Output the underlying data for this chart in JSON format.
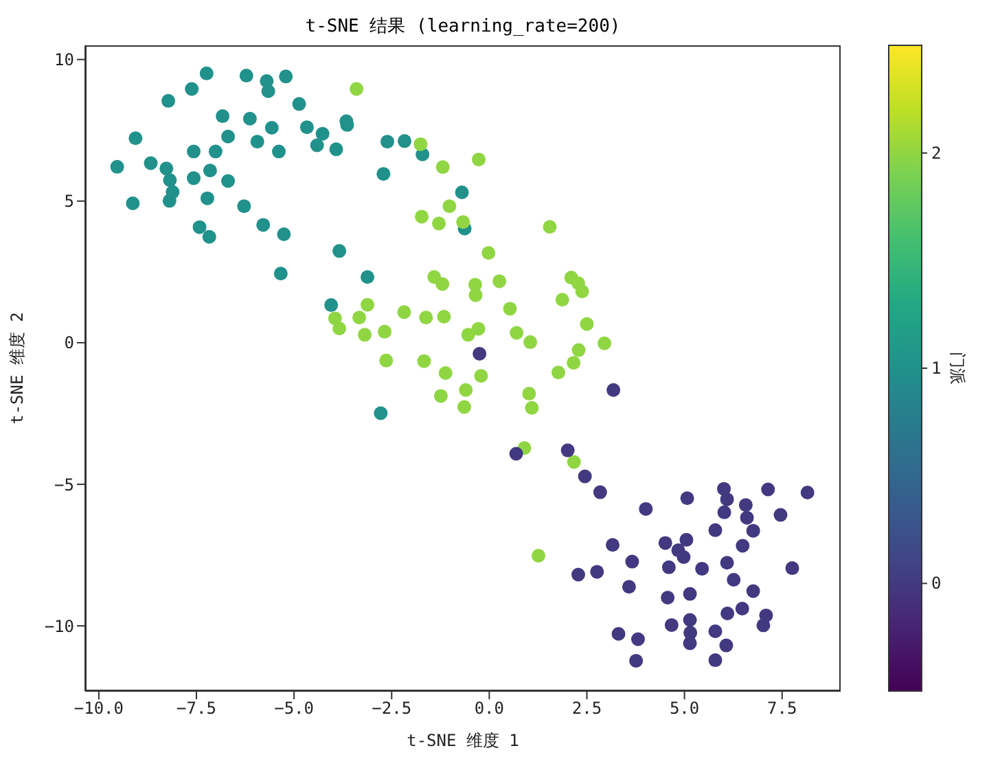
{
  "chart_data": {
    "type": "scatter",
    "title": "t-SNE 结果 (learning_rate=200)",
    "xlabel": "t-SNE 维度 1",
    "ylabel": "t-SNE 维度 2",
    "clabel": "门派",
    "marker": "circle",
    "xlim": [
      -10.35,
      9.0
    ],
    "ylim": [
      -12.3,
      10.5
    ],
    "xticks": [
      {
        "value": -10,
        "label": "−10.0"
      },
      {
        "value": -7.5,
        "label": "−7.5"
      },
      {
        "value": -5,
        "label": "−5.0"
      },
      {
        "value": -2.5,
        "label": "−2.5"
      },
      {
        "value": 0,
        "label": "0.0"
      },
      {
        "value": 2.5,
        "label": "2.5"
      },
      {
        "value": 5,
        "label": "5.0"
      },
      {
        "value": 7.5,
        "label": "7.5"
      }
    ],
    "yticks": [
      {
        "value": -10,
        "label": "−10"
      },
      {
        "value": -5,
        "label": "−5"
      },
      0,
      5,
      10
    ],
    "clim": [
      -0.5,
      2.5
    ],
    "cticks": [
      0,
      1,
      2
    ],
    "x": [
      -7.24,
      -6.22,
      -5.7,
      -5.66,
      -5.21,
      -7.62,
      -8.22,
      -4.87,
      -6.83,
      -6.13,
      -5.57,
      -4.67,
      -4.27,
      -3.66,
      -3.64,
      -9.06,
      -6.69,
      -5.94,
      -4.41,
      -3.92,
      -5.39,
      -7.57,
      -7.01,
      -2.61,
      -2.17,
      -1.71,
      -9.53,
      -8.67,
      -8.27,
      -8.18,
      -7.57,
      -7.15,
      -6.69,
      -8.11,
      -8.19,
      -9.13,
      -7.22,
      -6.28,
      -2.71,
      -0.7,
      -0.63,
      -7.42,
      -7.17,
      -5.79,
      -5.26,
      -3.84,
      -5.34,
      -3.12,
      -4.05,
      -2.78,
      -3.4,
      -1.76,
      -1.19,
      -1.02,
      -1.73,
      -1.29,
      -0.67,
      -1.41,
      -1.2,
      -3.12,
      -2.18,
      -3.95,
      -3.33,
      -1.62,
      -1.16,
      -0.27,
      1.55,
      -0.02,
      -0.36,
      -0.35,
      0.26,
      2.1,
      2.28,
      2.38,
      1.87,
      0.53,
      2.5,
      2.95,
      2.29,
      2.16,
      1.77,
      0.7,
      1.05,
      -0.28,
      -0.54,
      -3.84,
      -3.19,
      -2.68,
      -2.64,
      -1.67,
      -1.12,
      -0.21,
      -0.6,
      -1.24,
      -0.64,
      1.02,
      1.09,
      0.9,
      2.17,
      1.26,
      -0.25,
      3.18,
      0.69,
      2.01,
      2.45,
      2.84,
      4.01,
      5.07,
      6.01,
      6.09,
      6.02,
      6.57,
      6.6,
      7.14,
      8.15,
      7.46,
      5.79,
      6.76,
      6.49,
      3.16,
      4.51,
      5.05,
      4.84,
      4.98,
      3.66,
      4.6,
      5.45,
      6.09,
      7.76,
      2.28,
      2.76,
      3.58,
      6.26,
      6.76,
      4.57,
      5.14,
      6.48,
      6.1,
      7.09,
      7.02,
      4.67,
      5.14,
      5.15,
      5.14,
      5.79,
      6.07,
      3.31,
      3.81,
      3.76,
      5.79
    ],
    "values": [
      9.51,
      9.43,
      9.24,
      8.88,
      9.4,
      8.96,
      8.54,
      8.43,
      8.0,
      7.91,
      7.59,
      7.61,
      7.38,
      7.82,
      7.69,
      7.22,
      7.28,
      7.1,
      6.97,
      6.83,
      6.75,
      6.75,
      6.75,
      7.1,
      7.12,
      6.65,
      6.21,
      6.34,
      6.15,
      5.74,
      5.81,
      6.08,
      5.71,
      5.32,
      5.01,
      4.92,
      5.1,
      4.82,
      5.96,
      5.31,
      4.03,
      4.08,
      3.74,
      4.16,
      3.83,
      3.24,
      2.44,
      2.32,
      1.33,
      -2.49,
      8.96,
      7.01,
      6.2,
      4.82,
      4.45,
      4.21,
      4.26,
      2.32,
      2.07,
      1.34,
      1.08,
      0.86,
      0.89,
      0.89,
      0.92,
      6.47,
      4.09,
      3.17,
      2.05,
      1.68,
      2.17,
      2.3,
      2.1,
      1.81,
      1.52,
      1.2,
      0.66,
      -0.02,
      -0.26,
      -0.71,
      -1.05,
      0.35,
      0.02,
      0.49,
      0.28,
      0.5,
      0.28,
      0.39,
      -0.63,
      -0.65,
      -1.07,
      -1.17,
      -1.67,
      -1.88,
      -2.27,
      -1.8,
      -2.3,
      -3.72,
      -4.21,
      -7.52,
      -0.39,
      -1.67,
      -3.92,
      -3.8,
      -4.72,
      -5.28,
      -5.87,
      -5.49,
      -5.16,
      -5.53,
      -5.99,
      -5.73,
      -6.18,
      -5.18,
      -5.29,
      -6.08,
      -6.62,
      -6.64,
      -7.17,
      -7.14,
      -7.07,
      -6.96,
      -7.33,
      -7.57,
      -7.73,
      -7.93,
      -7.98,
      -7.77,
      -7.96,
      -8.19,
      -8.09,
      -8.62,
      -8.37,
      -8.77,
      -9.0,
      -8.87,
      -9.39,
      -9.56,
      -9.63,
      -9.98,
      -9.97,
      -9.79,
      -10.24,
      -10.61,
      -10.19,
      -10.69,
      -10.28,
      -10.47,
      -11.23,
      -11.21
    ],
    "cvalues": [
      1,
      1,
      1,
      1,
      1,
      1,
      1,
      1,
      1,
      1,
      1,
      1,
      1,
      1,
      1,
      1,
      1,
      1,
      1,
      1,
      1,
      1,
      1,
      1,
      1,
      1,
      1,
      1,
      1,
      1,
      1,
      1,
      1,
      1,
      1,
      1,
      1,
      1,
      1,
      1,
      1,
      1,
      1,
      1,
      1,
      1,
      1,
      1,
      1,
      1,
      2,
      2,
      2,
      2,
      2,
      2,
      2,
      2,
      2,
      2,
      2,
      2,
      2,
      2,
      2,
      2,
      2,
      2,
      2,
      2,
      2,
      2,
      2,
      2,
      2,
      2,
      2,
      2,
      2,
      2,
      2,
      2,
      2,
      2,
      2,
      2,
      2,
      2,
      2,
      2,
      2,
      2,
      2,
      2,
      2,
      2,
      2,
      2,
      2,
      2,
      0,
      0,
      0,
      0,
      0,
      0,
      0,
      0,
      0,
      0,
      0,
      0,
      0,
      0,
      0,
      0,
      0,
      0,
      0,
      0,
      0,
      0,
      0,
      0,
      0,
      0,
      0,
      0,
      0,
      0,
      0,
      0,
      0,
      0,
      0,
      0,
      0,
      0,
      0,
      0,
      0,
      0,
      0,
      0,
      0,
      0,
      0,
      0,
      0,
      0
    ]
  }
}
